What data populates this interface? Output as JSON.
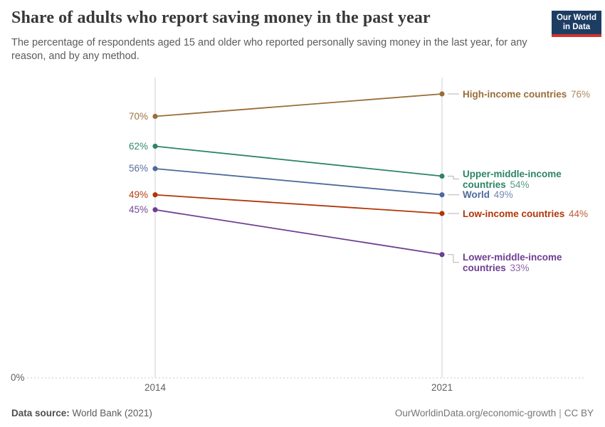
{
  "header": {
    "title": "Share of adults who report saving money in the past year",
    "subtitle": "The percentage of respondents aged 15 and older who reported personally saving money in the last year, for any reason, and by any method.",
    "logo": {
      "line1": "Our World",
      "line2": "in Data",
      "bg_color": "#1d3d63",
      "accent_color": "#d0342c"
    }
  },
  "chart_data": {
    "type": "line",
    "subtype": "slope",
    "title": "Share of adults who report saving money in the past year",
    "x": [
      "2014",
      "2021"
    ],
    "xlabel": "",
    "ylabel": "",
    "ylim": [
      0,
      80
    ],
    "y_zero_label": "0%",
    "grid": "dotted-zero-line-only",
    "legend_position": "right-inline-labels",
    "series": [
      {
        "name": "High-income countries",
        "values": [
          70,
          76
        ],
        "color": "#996D39",
        "start_label": "70%",
        "end_label": "76%",
        "wrap_end_label": false,
        "end_label_dy": 0
      },
      {
        "name": "Upper-middle-income countries",
        "values": [
          62,
          54
        ],
        "color": "#2C8465",
        "start_label": "62%",
        "end_label": "54%",
        "wrap_end_label": true,
        "end_label_dy": 4
      },
      {
        "name": "World",
        "values": [
          56,
          49
        ],
        "color": "#4C6A9C",
        "start_label": "56%",
        "end_label": "49%",
        "wrap_end_label": false,
        "end_label_dy": 0
      },
      {
        "name": "Low-income countries",
        "values": [
          49,
          44
        ],
        "color": "#B13507",
        "start_label": "49%",
        "end_label": "44%",
        "wrap_end_label": false,
        "end_label_dy": 0
      },
      {
        "name": "Lower-middle-income countries",
        "values": [
          45,
          33
        ],
        "color": "#6D3E91",
        "start_label": "45%",
        "end_label": "33%",
        "wrap_end_label": true,
        "end_label_dy": 11
      }
    ]
  },
  "footer": {
    "source_label": "Data source:",
    "source_value": "World Bank (2021)",
    "url": "OurWorldinData.org/economic-growth",
    "separator": "|",
    "license": "CC BY"
  }
}
